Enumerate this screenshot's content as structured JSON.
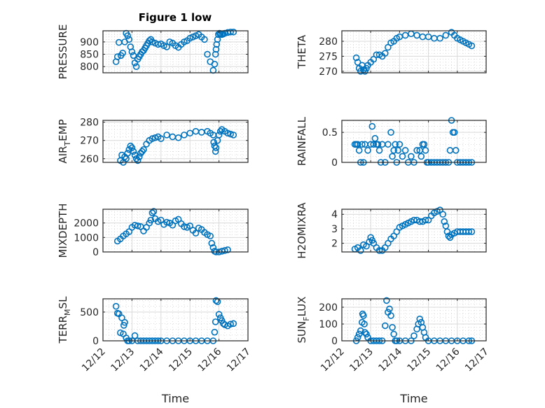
{
  "figure": {
    "title": "Figure 1 low",
    "marker_color": "#0072BD",
    "axes_color": "#262626",
    "grid_color": "#d9d9d9",
    "xlabel": "Time"
  },
  "chart_data": [
    {
      "type": "scatter",
      "title": "Figure 1 low",
      "ylabel": "PRESSURE",
      "xlabel": "",
      "xlim": [
        0,
        5
      ],
      "xticklabels": [
        "12/12",
        "12/13",
        "12/14",
        "12/15",
        "12/16",
        "12/17"
      ],
      "ylim": [
        775,
        945
      ],
      "yticks": [
        800,
        850,
        900
      ],
      "grid": true,
      "x": [
        0.45,
        0.5,
        0.55,
        0.62,
        0.68,
        0.75,
        0.8,
        0.85,
        0.9,
        0.95,
        1.0,
        1.05,
        1.1,
        1.15,
        1.2,
        1.25,
        1.3,
        1.35,
        1.4,
        1.45,
        1.5,
        1.55,
        1.6,
        1.65,
        1.7,
        1.8,
        1.9,
        2.0,
        2.1,
        2.2,
        2.3,
        2.4,
        2.5,
        2.6,
        2.7,
        2.8,
        2.9,
        3.0,
        3.1,
        3.2,
        3.3,
        3.4,
        3.5,
        3.6,
        3.7,
        3.8,
        3.85,
        3.88,
        3.9,
        3.92,
        3.95,
        3.98,
        4.02,
        4.05,
        4.1,
        4.15,
        4.2,
        4.3,
        4.4,
        4.5
      ],
      "y": [
        820,
        840,
        898,
        845,
        855,
        900,
        935,
        925,
        910,
        880,
        860,
        845,
        815,
        800,
        830,
        840,
        850,
        860,
        865,
        875,
        885,
        895,
        905,
        910,
        900,
        895,
        890,
        892,
        885,
        880,
        900,
        895,
        885,
        878,
        890,
        900,
        905,
        915,
        920,
        925,
        930,
        920,
        910,
        850,
        820,
        785,
        810,
        850,
        870,
        890,
        910,
        930,
        935,
        932,
        930,
        932,
        935,
        938,
        940,
        940
      ]
    },
    {
      "type": "scatter",
      "ylabel": "THETA",
      "xlabel": "",
      "xlim": [
        0,
        5
      ],
      "xticklabels": [
        "12/12",
        "12/13",
        "12/14",
        "12/15",
        "12/16",
        "12/17"
      ],
      "ylim": [
        269.5,
        283.5
      ],
      "yticks": [
        270,
        275,
        280
      ],
      "grid": true,
      "x": [
        0.5,
        0.55,
        0.6,
        0.65,
        0.7,
        0.75,
        0.8,
        0.85,
        0.9,
        1.0,
        1.1,
        1.2,
        1.3,
        1.4,
        1.5,
        1.6,
        1.7,
        1.8,
        1.9,
        2.0,
        2.2,
        2.4,
        2.6,
        2.8,
        3.0,
        3.2,
        3.4,
        3.6,
        3.8,
        3.9,
        4.0,
        4.1,
        4.2,
        4.3,
        4.4,
        4.5
      ],
      "y": [
        274.5,
        273,
        271,
        270,
        272,
        270.5,
        270,
        271,
        272,
        273,
        274,
        275.5,
        275.5,
        275,
        276,
        278,
        279.5,
        280,
        281,
        281.5,
        282,
        282.5,
        282,
        281.5,
        281.5,
        281,
        281,
        282,
        283,
        282,
        281,
        280.5,
        280,
        279.5,
        279,
        278.5
      ]
    },
    {
      "type": "scatter",
      "ylabel": "AIR_TEMP",
      "xlabel": "",
      "xlim": [
        0,
        5
      ],
      "xticklabels": [
        "12/12",
        "12/13",
        "12/14",
        "12/15",
        "12/16",
        "12/17"
      ],
      "ylim": [
        258,
        281
      ],
      "yticks": [
        260,
        270,
        280
      ],
      "grid": true,
      "x": [
        0.6,
        0.65,
        0.7,
        0.75,
        0.8,
        0.85,
        0.9,
        0.95,
        1.0,
        1.05,
        1.1,
        1.15,
        1.2,
        1.25,
        1.3,
        1.35,
        1.4,
        1.5,
        1.6,
        1.7,
        1.8,
        1.9,
        2.0,
        2.2,
        2.4,
        2.6,
        2.8,
        3.0,
        3.2,
        3.4,
        3.6,
        3.7,
        3.8,
        3.82,
        3.85,
        3.88,
        3.9,
        3.95,
        4.0,
        4.05,
        4.1,
        4.2,
        4.3,
        4.4,
        4.5
      ],
      "y": [
        259,
        262,
        258,
        261,
        260,
        263,
        265,
        267,
        266,
        264,
        262,
        260,
        259,
        261,
        263,
        264,
        265,
        268,
        270,
        271,
        271.5,
        272,
        271,
        273,
        272,
        271.5,
        273,
        274,
        275,
        274.5,
        275,
        274,
        273,
        269,
        267,
        264,
        266,
        270,
        273,
        275,
        276,
        275,
        274,
        273.5,
        273
      ]
    },
    {
      "type": "scatter",
      "ylabel": "RAINFALL",
      "xlabel": "",
      "xlim": [
        0,
        5
      ],
      "xticklabels": [
        "12/12",
        "12/13",
        "12/14",
        "12/15",
        "12/16",
        "12/17"
      ],
      "ylim": [
        0,
        0.7
      ],
      "yticks": [
        0,
        0.5
      ],
      "grid": true,
      "x": [
        0.45,
        0.5,
        0.55,
        0.6,
        0.65,
        0.7,
        0.75,
        0.8,
        0.9,
        1.0,
        1.05,
        1.1,
        1.15,
        1.2,
        1.25,
        1.3,
        1.35,
        1.4,
        1.5,
        1.6,
        1.7,
        1.75,
        1.8,
        1.85,
        1.9,
        1.95,
        2.0,
        2.1,
        2.2,
        2.3,
        2.4,
        2.5,
        2.6,
        2.7,
        2.75,
        2.8,
        2.85,
        2.9,
        2.95,
        3.0,
        3.1,
        3.2,
        3.3,
        3.4,
        3.5,
        3.6,
        3.7,
        3.75,
        3.8,
        3.85,
        3.9,
        3.95,
        4.0,
        4.1,
        4.2,
        4.3,
        4.4,
        4.5
      ],
      "y": [
        0.3,
        0.3,
        0.3,
        0.2,
        0,
        0.3,
        0,
        0.3,
        0.2,
        0.3,
        0.6,
        0.3,
        0.4,
        0.3,
        0.3,
        0.2,
        0,
        0.3,
        0,
        0.3,
        0.5,
        0.1,
        0.2,
        0.3,
        0,
        0.2,
        0.3,
        0.1,
        0.2,
        0,
        0.1,
        0,
        0.2,
        0.2,
        0.1,
        0.3,
        0.3,
        0.2,
        0,
        0,
        0,
        0,
        0,
        0,
        0,
        0,
        0,
        0.2,
        0.7,
        0.5,
        0.5,
        0.2,
        0,
        0,
        0,
        0,
        0,
        0
      ]
    },
    {
      "type": "scatter",
      "ylabel": "MIXDEPTH",
      "xlabel": "",
      "xlim": [
        0,
        5
      ],
      "xticklabels": [
        "12/12",
        "12/13",
        "12/14",
        "12/15",
        "12/16",
        "12/17"
      ],
      "ylim": [
        0,
        2950
      ],
      "yticks": [
        0,
        1000,
        2000
      ],
      "grid": true,
      "x": [
        0.5,
        0.6,
        0.7,
        0.8,
        0.9,
        1.0,
        1.1,
        1.2,
        1.3,
        1.4,
        1.5,
        1.6,
        1.65,
        1.7,
        1.75,
        1.8,
        1.9,
        2.0,
        2.1,
        2.2,
        2.3,
        2.4,
        2.5,
        2.6,
        2.7,
        2.8,
        2.9,
        3.0,
        3.1,
        3.2,
        3.3,
        3.4,
        3.5,
        3.6,
        3.7,
        3.75,
        3.8,
        3.85,
        3.9,
        4.0,
        4.1,
        4.2,
        4.3
      ],
      "y": [
        750,
        900,
        1100,
        1250,
        1400,
        1700,
        1850,
        1800,
        1750,
        1450,
        1700,
        2000,
        2200,
        2700,
        2800,
        2300,
        2100,
        2200,
        1900,
        2050,
        2000,
        1850,
        2150,
        2250,
        1950,
        1750,
        1700,
        1800,
        1500,
        1300,
        1650,
        1550,
        1350,
        1200,
        1100,
        600,
        300,
        50,
        0,
        0,
        50,
        100,
        150
      ]
    },
    {
      "type": "scatter",
      "ylabel": "H2OMIXRA",
      "xlabel": "",
      "xlim": [
        0,
        5
      ],
      "xticklabels": [
        "12/12",
        "12/13",
        "12/14",
        "12/15",
        "12/16",
        "12/17"
      ],
      "ylim": [
        1.4,
        4.35
      ],
      "yticks": [
        2,
        3,
        4
      ],
      "grid": true,
      "x": [
        0.45,
        0.55,
        0.65,
        0.75,
        0.85,
        0.95,
        1.0,
        1.05,
        1.1,
        1.2,
        1.3,
        1.4,
        1.5,
        1.6,
        1.7,
        1.8,
        1.9,
        2.0,
        2.1,
        2.2,
        2.3,
        2.4,
        2.5,
        2.6,
        2.7,
        2.8,
        2.9,
        3.0,
        3.1,
        3.2,
        3.3,
        3.4,
        3.5,
        3.55,
        3.6,
        3.65,
        3.7,
        3.75,
        3.8,
        3.9,
        4.0,
        4.1,
        4.2,
        4.3,
        4.4,
        4.5
      ],
      "y": [
        1.6,
        1.7,
        1.5,
        1.9,
        1.8,
        2.1,
        2.4,
        2.2,
        2.0,
        1.7,
        1.5,
        1.5,
        1.7,
        2.0,
        2.3,
        2.5,
        2.8,
        3.1,
        3.2,
        3.3,
        3.4,
        3.5,
        3.6,
        3.6,
        3.5,
        3.5,
        3.6,
        3.6,
        3.9,
        4.1,
        4.2,
        4.3,
        4.0,
        3.5,
        3.2,
        2.8,
        2.5,
        2.4,
        2.6,
        2.7,
        2.8,
        2.8,
        2.8,
        2.8,
        2.8,
        2.8
      ]
    },
    {
      "type": "scatter",
      "ylabel": "TERR_MSL",
      "xlabel": "Time",
      "xlim": [
        0,
        5
      ],
      "xticklabels": [
        "12/12",
        "12/13",
        "12/14",
        "12/15",
        "12/16",
        "12/17"
      ],
      "ylim": [
        0,
        730
      ],
      "yticks": [
        0,
        500
      ],
      "grid": true,
      "x": [
        0.45,
        0.5,
        0.55,
        0.6,
        0.65,
        0.7,
        0.72,
        0.75,
        0.8,
        0.85,
        0.9,
        1.0,
        1.1,
        1.2,
        1.3,
        1.4,
        1.5,
        1.6,
        1.7,
        1.8,
        1.9,
        2.0,
        2.2,
        2.4,
        2.6,
        2.8,
        3.0,
        3.2,
        3.4,
        3.6,
        3.8,
        3.85,
        3.88,
        3.9,
        3.95,
        4.0,
        4.05,
        4.1,
        4.15,
        4.2,
        4.3,
        4.4,
        4.5
      ],
      "y": [
        600,
        480,
        470,
        140,
        400,
        120,
        270,
        320,
        50,
        0,
        0,
        0,
        90,
        0,
        0,
        0,
        0,
        0,
        0,
        0,
        0,
        0,
        0,
        0,
        0,
        0,
        0,
        0,
        0,
        0,
        0,
        150,
        330,
        700,
        680,
        460,
        400,
        350,
        300,
        280,
        260,
        290,
        300
      ]
    },
    {
      "type": "scatter",
      "ylabel": "SUN_FLUX",
      "xlabel": "Time",
      "xlim": [
        0,
        5
      ],
      "xticklabels": [
        "12/12",
        "12/13",
        "12/14",
        "12/15",
        "12/16",
        "12/17"
      ],
      "ylim": [
        0,
        250
      ],
      "yticks": [
        0,
        100,
        200
      ],
      "grid": true,
      "x": [
        0.5,
        0.55,
        0.6,
        0.65,
        0.7,
        0.72,
        0.75,
        0.78,
        0.8,
        0.85,
        0.9,
        1.0,
        1.1,
        1.2,
        1.3,
        1.4,
        1.5,
        1.55,
        1.6,
        1.65,
        1.7,
        1.75,
        1.8,
        1.85,
        1.9,
        2.0,
        2.2,
        2.4,
        2.5,
        2.6,
        2.65,
        2.7,
        2.75,
        2.8,
        2.85,
        2.9,
        3.0,
        3.2,
        3.4,
        3.6,
        3.8,
        4.0,
        4.2,
        4.4,
        4.5
      ],
      "y": [
        0,
        20,
        40,
        60,
        110,
        160,
        150,
        100,
        50,
        40,
        20,
        0,
        0,
        0,
        0,
        0,
        90,
        240,
        170,
        190,
        150,
        80,
        40,
        0,
        0,
        0,
        0,
        0,
        30,
        70,
        100,
        130,
        110,
        80,
        50,
        20,
        0,
        0,
        0,
        0,
        0,
        0,
        0,
        0,
        0
      ]
    }
  ]
}
